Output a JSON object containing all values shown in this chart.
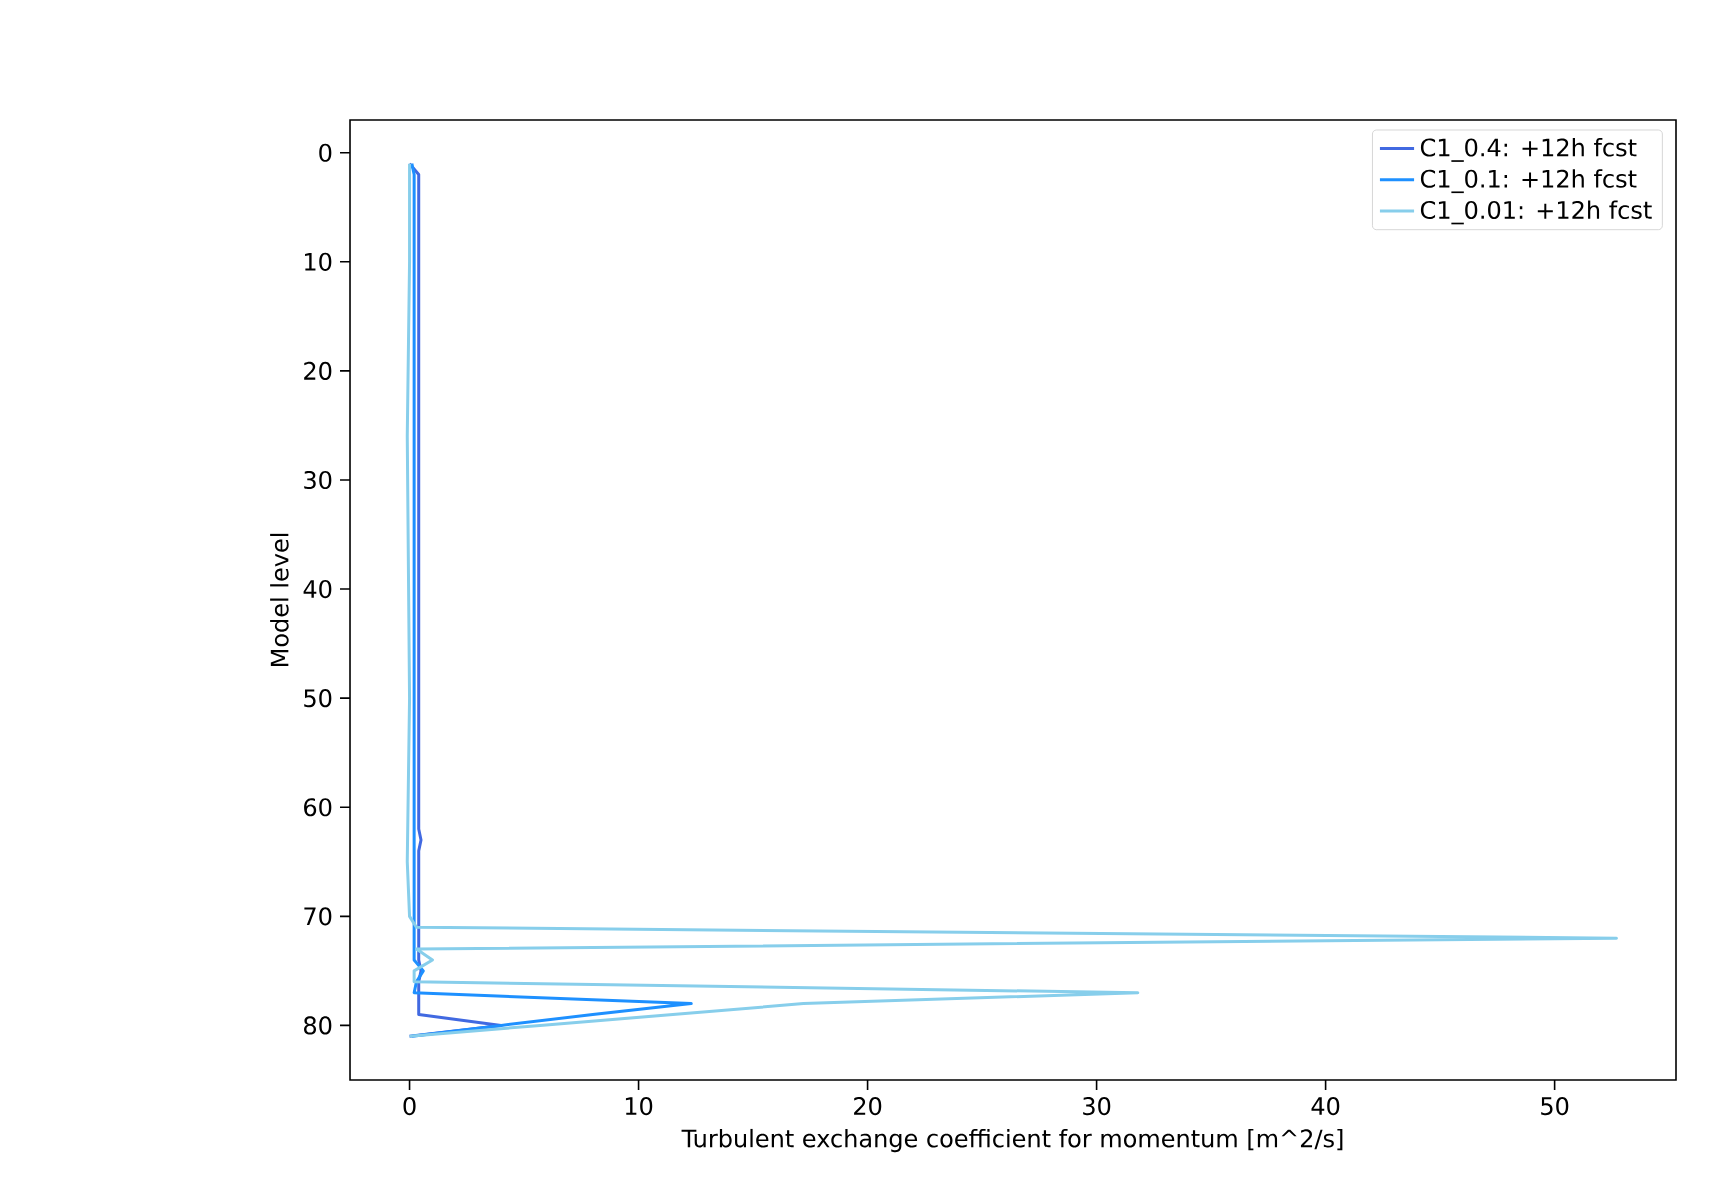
{
  "chart_data": {
    "type": "line",
    "xlabel": "Turbulent exchange coefficient for momentum [m^2/s]",
    "ylabel": "Model level",
    "xlim": [
      -2.6,
      55.3
    ],
    "ylim": [
      85,
      -3
    ],
    "xticks": [
      0,
      10,
      20,
      30,
      40,
      50
    ],
    "yticks": [
      0,
      10,
      20,
      30,
      40,
      50,
      60,
      70,
      80
    ],
    "legend": "top right",
    "line_style": "solid",
    "marker": "none",
    "series": [
      {
        "name": "C1_0.4: +12h fcst",
        "color": "#4169e1",
        "x": [
          0,
          0.4,
          0.4,
          0.5,
          0.4,
          0.4,
          0.5,
          0.4,
          0.4,
          4.0,
          0
        ],
        "values": [
          1,
          2,
          62,
          63,
          64,
          74,
          75,
          76,
          79,
          80,
          81
        ]
      },
      {
        "name": "C1_0.1: +12h fcst",
        "color": "#1e90ff",
        "x": [
          0.1,
          0.2,
          0.2,
          0.6,
          0.3,
          0.2,
          12.3,
          8,
          4,
          0.1
        ],
        "values": [
          1,
          2,
          74,
          75,
          76,
          77,
          78,
          79,
          80,
          81
        ]
      },
      {
        "name": "C1_0.01: +12h fcst",
        "color": "#87ceeb",
        "x": [
          0,
          0,
          -0.1,
          0,
          -0.1,
          0,
          0.3,
          52.7,
          0.3,
          1.0,
          0.2,
          0.2,
          31.8,
          17.2,
          11.5,
          5.7,
          0
        ],
        "values": [
          1,
          10,
          26,
          50,
          65,
          70,
          71,
          72,
          73,
          74,
          75,
          76,
          77,
          78,
          79,
          80,
          81
        ]
      }
    ]
  }
}
